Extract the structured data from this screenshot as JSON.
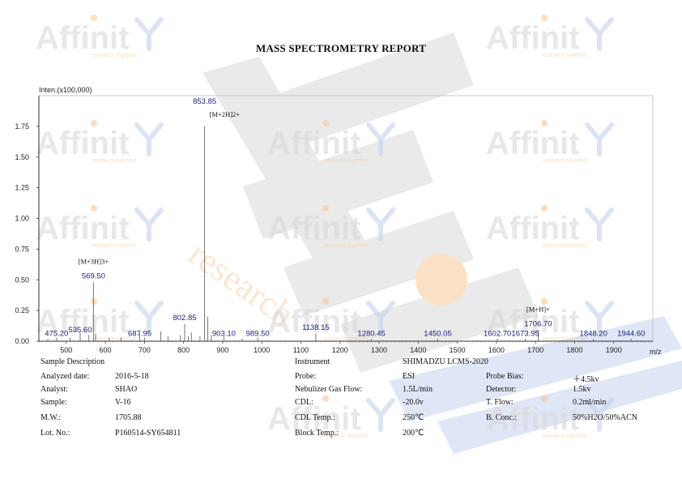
{
  "report_title": "MASS SPECTROMETRY REPORT",
  "watermark": {
    "logo_text": "Affinit",
    "tagline": "research together",
    "diagonal_text": "research",
    "colors": {
      "grey": "#d9d9d9",
      "blue": "#c5d3ee",
      "orange": "#f6c998"
    }
  },
  "chart_data": {
    "type": "bar",
    "ylabel": "Inten.(x100,000)",
    "xlabel": "m/z",
    "xlim": [
      430,
      2000
    ],
    "ylim": [
      0,
      2.0
    ],
    "x_ticks": [
      500,
      600,
      700,
      800,
      900,
      1000,
      1100,
      1200,
      1300,
      1400,
      1500,
      1600,
      1700,
      1800,
      1900
    ],
    "y_ticks": [
      0.0,
      0.25,
      0.5,
      0.75,
      1.0,
      1.25,
      1.5,
      1.75
    ],
    "y_tick_labels": [
      "0.00",
      "0.25",
      "0.50",
      "0.75",
      "1.00",
      "1.25",
      "1.50",
      "1.75"
    ],
    "grid": false,
    "peaks": [
      {
        "mz": 453.0,
        "intensity": 0.02
      },
      {
        "mz": 475.2,
        "intensity": 0.03
      },
      {
        "mz": 510.0,
        "intensity": 0.03
      },
      {
        "mz": 535.6,
        "intensity": 0.07
      },
      {
        "mz": 558.0,
        "intensity": 0.05
      },
      {
        "mz": 569.5,
        "intensity": 0.48
      },
      {
        "mz": 575.0,
        "intensity": 0.06
      },
      {
        "mz": 610.0,
        "intensity": 0.03
      },
      {
        "mz": 640.0,
        "intensity": 0.03
      },
      {
        "mz": 687.95,
        "intensity": 0.06
      },
      {
        "mz": 700.0,
        "intensity": 0.03
      },
      {
        "mz": 742.0,
        "intensity": 0.08
      },
      {
        "mz": 760.0,
        "intensity": 0.04
      },
      {
        "mz": 792.0,
        "intensity": 0.05
      },
      {
        "mz": 802.85,
        "intensity": 0.14
      },
      {
        "mz": 812.0,
        "intensity": 0.04
      },
      {
        "mz": 820.0,
        "intensity": 0.07
      },
      {
        "mz": 842.0,
        "intensity": 0.04
      },
      {
        "mz": 853.85,
        "intensity": 1.75
      },
      {
        "mz": 862.0,
        "intensity": 0.2
      },
      {
        "mz": 871.0,
        "intensity": 0.05
      },
      {
        "mz": 903.1,
        "intensity": 0.04
      },
      {
        "mz": 950.0,
        "intensity": 0.02
      },
      {
        "mz": 989.5,
        "intensity": 0.03
      },
      {
        "mz": 1138.15,
        "intensity": 0.06
      },
      {
        "mz": 1280.45,
        "intensity": 0.02
      },
      {
        "mz": 1450.05,
        "intensity": 0.02
      },
      {
        "mz": 1602.7,
        "intensity": 0.02
      },
      {
        "mz": 1673.95,
        "intensity": 0.02
      },
      {
        "mz": 1706.7,
        "intensity": 0.09
      },
      {
        "mz": 1848.2,
        "intensity": 0.02
      },
      {
        "mz": 1944.6,
        "intensity": 0.02
      }
    ],
    "peak_labels": [
      {
        "mz": 853.85,
        "text": "853.85",
        "level": 1.92
      },
      {
        "mz": 569.5,
        "text": "569.50",
        "level": 0.5
      },
      {
        "mz": 802.85,
        "text": "802.85",
        "level": 0.16
      },
      {
        "mz": 1706.7,
        "text": "1706.70",
        "level": 0.11
      },
      {
        "mz": 475.2,
        "text": "475.20",
        "level": 0.03
      },
      {
        "mz": 535.6,
        "text": "535.60",
        "level": 0.06
      },
      {
        "mz": 687.95,
        "text": "687.95",
        "level": 0.03
      },
      {
        "mz": 903.1,
        "text": "903.10",
        "level": 0.03
      },
      {
        "mz": 989.5,
        "text": "989.50",
        "level": 0.03
      },
      {
        "mz": 1138.15,
        "text": "1138.15",
        "level": 0.08
      },
      {
        "mz": 1280.45,
        "text": "1280.45",
        "level": 0.03
      },
      {
        "mz": 1450.05,
        "text": "1450.05",
        "level": 0.03
      },
      {
        "mz": 1602.7,
        "text": "1602.70",
        "level": 0.03
      },
      {
        "mz": 1673.95,
        "text": "1673.95",
        "level": 0.03
      },
      {
        "mz": 1848.2,
        "text": "1848.20",
        "level": 0.03
      },
      {
        "mz": 1944.6,
        "text": "1944.60",
        "level": 0.03
      }
    ],
    "ion_annotations": [
      {
        "mz": 853.85,
        "text": "[M+2H]2+",
        "level": 1.83
      },
      {
        "mz": 569.5,
        "text": "[M+3H]3+",
        "level": 0.63
      },
      {
        "mz": 1706.7,
        "text": "[M+H]+",
        "level": 0.24
      }
    ],
    "colors": {
      "peaks": "#666666",
      "labels": "#1a1f7a",
      "axis": "#333333"
    }
  },
  "info": {
    "left": [
      {
        "label": "Sample Description",
        "value": ""
      },
      {
        "label": "Analyzed date:",
        "value": "2016-5-18"
      },
      {
        "label": "Analyst:",
        "value": "SHAO"
      },
      {
        "label": "Sample:",
        "value": "V-16"
      },
      {
        "label": "M.W.:",
        "value": "1705.88"
      },
      {
        "label": "Lot. No.:",
        "value": "P160514-SY654811"
      }
    ],
    "middle": [
      {
        "label": "Instrument",
        "value": "SHIMADZU LCMS-2020"
      },
      {
        "label": "Probe:",
        "value": "ESI"
      },
      {
        "label": "Nebulizer Gas Flow:",
        "value": "1.5L/min"
      },
      {
        "label": "CDL:",
        "value": "-20.0v"
      },
      {
        "label": "CDL Temp.:",
        "value": "250℃"
      },
      {
        "label": "Block Temp.:",
        "value": "200℃"
      }
    ],
    "right": [
      {
        "label": "Probe Bias:",
        "value": "＋4.5kv"
      },
      {
        "label": "Detector:",
        "value": "1.5kv"
      },
      {
        "label": "T. Flow:",
        "value": "0.2ml/min"
      },
      {
        "label": "B. Conc.:",
        "value": "50%H2O/50%ACN"
      }
    ]
  }
}
